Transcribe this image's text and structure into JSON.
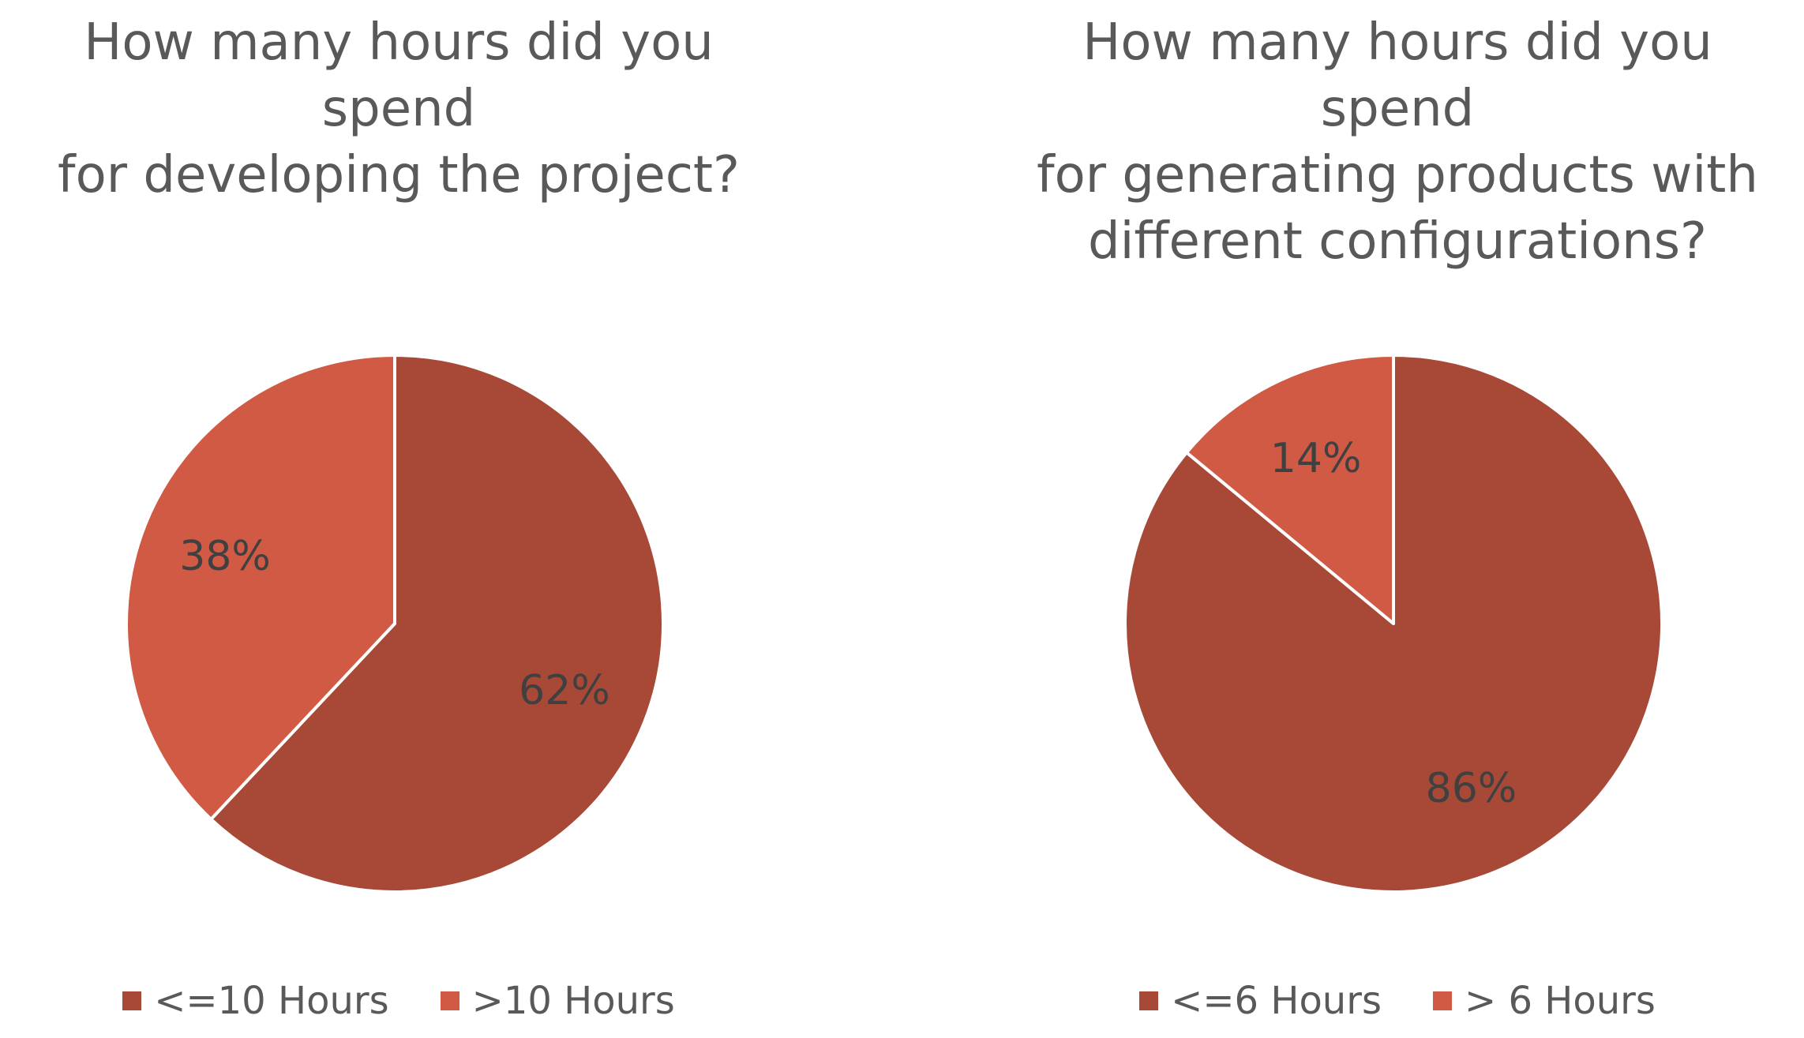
{
  "chart_data": [
    {
      "type": "pie",
      "title": "How many hours did you spend\nfor developing the project?",
      "categories": [
        "<=10 Hours",
        ">10 Hours"
      ],
      "values": [
        62,
        38
      ],
      "value_labels": [
        "62%",
        "38%"
      ],
      "colors": [
        "#A84937",
        "#D15A45"
      ],
      "start_angle_deg": 0,
      "direction": "clockwise",
      "legend_position": "bottom"
    },
    {
      "type": "pie",
      "title": "How many hours did you spend\nfor generating products with\ndifferent configurations?",
      "categories": [
        "<=6 Hours",
        "> 6 Hours"
      ],
      "values": [
        86,
        14
      ],
      "value_labels": [
        "86%",
        "14%"
      ],
      "colors": [
        "#A84937",
        "#D15A45"
      ],
      "start_angle_deg": 0,
      "direction": "clockwise",
      "legend_position": "bottom"
    }
  ]
}
